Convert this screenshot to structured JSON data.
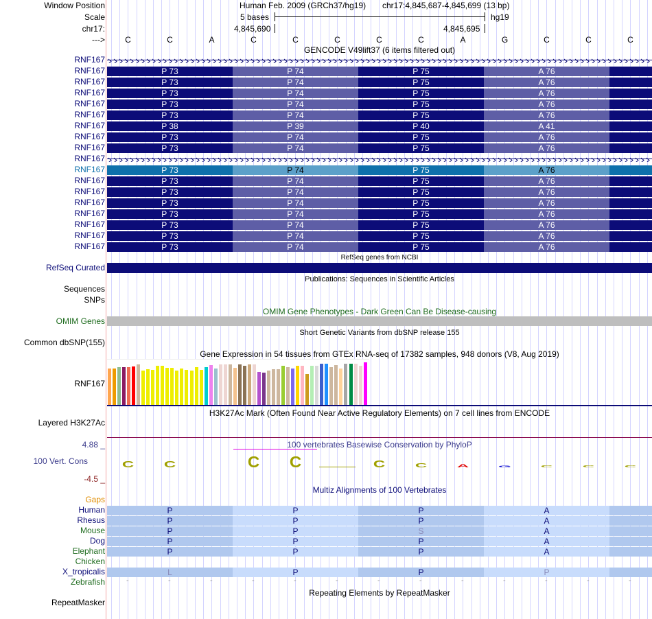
{
  "header": {
    "window_position_label": "Window Position",
    "scale_label": "Scale",
    "chrom_label": "chr17:",
    "strand_label": "--->",
    "assembly_text": "Human Feb. 2009 (GRCh37/hg19)",
    "position_text": "chr17:4,845,687-4,845,699 (13 bp)",
    "scale_text": "5 bases",
    "scale_db": "hg19",
    "coord_left": "4,845,690",
    "coord_right": "4,845,695",
    "bases": [
      "C",
      "C",
      "A",
      "C",
      "C",
      "C",
      "C",
      "C",
      "A",
      "G",
      "C",
      "C",
      "C"
    ]
  },
  "gencode": {
    "title": "GENCODE V49lift37 (6 items filtered out)",
    "gene": "RNF167",
    "rows": [
      {
        "type": "intron"
      },
      {
        "type": "exon",
        "codons": [
          "P 73",
          "P 74",
          "P 75",
          "A 76"
        ]
      },
      {
        "type": "exon",
        "codons": [
          "P 73",
          "P 74",
          "P 75",
          "A 76"
        ]
      },
      {
        "type": "exon",
        "codons": [
          "P 73",
          "P 74",
          "P 75",
          "A 76"
        ]
      },
      {
        "type": "exon",
        "codons": [
          "P 73",
          "P 74",
          "P 75",
          "A 76"
        ]
      },
      {
        "type": "exon",
        "codons": [
          "P 73",
          "P 74",
          "P 75",
          "A 76"
        ]
      },
      {
        "type": "exon",
        "codons": [
          "P 38",
          "P 39",
          "P 40",
          "A 41"
        ]
      },
      {
        "type": "exon",
        "codons": [
          "P 73",
          "P 74",
          "P 75",
          "A 76"
        ]
      },
      {
        "type": "exon",
        "codons": [
          "P 73",
          "P 74",
          "P 75",
          "A 76"
        ]
      },
      {
        "type": "intron"
      },
      {
        "type": "exon",
        "highlight": true,
        "codons": [
          "P 73",
          "P 74",
          "P 75",
          "A 76"
        ]
      },
      {
        "type": "exon",
        "codons": [
          "P 73",
          "P 74",
          "P 75",
          "A 76"
        ]
      },
      {
        "type": "exon",
        "codons": [
          "P 73",
          "P 74",
          "P 75",
          "A 76"
        ]
      },
      {
        "type": "exon",
        "codons": [
          "P 73",
          "P 74",
          "P 75",
          "A 76"
        ]
      },
      {
        "type": "exon",
        "codons": [
          "P 73",
          "P 74",
          "P 75",
          "A 76"
        ]
      },
      {
        "type": "exon",
        "codons": [
          "P 73",
          "P 74",
          "P 75",
          "A 76"
        ]
      },
      {
        "type": "exon",
        "codons": [
          "P 73",
          "P 74",
          "P 75",
          "A 76"
        ]
      },
      {
        "type": "exon",
        "codons": [
          "P 73",
          "P 74",
          "P 75",
          "A 76"
        ]
      }
    ],
    "colors": {
      "dark": "#0c0c78",
      "light": "#5e5ea6",
      "hl_dark": "#0e70ab",
      "hl_light": "#5ca0c9"
    }
  },
  "refseq": {
    "title": "RefSeq genes from NCBI",
    "label": "RefSeq Curated",
    "color": "#0c0c78"
  },
  "publications": {
    "title": "Publications: Sequences in Scientific Articles",
    "label1": "Sequences",
    "label2": "SNPs"
  },
  "omim": {
    "title": "OMIM Gene Phenotypes - Dark Green Can Be Disease-causing",
    "label": "OMIM Genes",
    "color": "#1e6b1e",
    "bar_color": "#bebebe"
  },
  "dbsnp": {
    "title": "Short Genetic Variants from dbSNP release 155",
    "label": "Common dbSNP(155)"
  },
  "gtex": {
    "title": "Gene Expression in 54 tissues from GTEx RNA-seq of 17382 samples, 948 donors (V8, Aug 2019)",
    "label": "RNF167",
    "bars": [
      {
        "c": "#ffa54f",
        "v": 0.85
      },
      {
        "c": "#ee9a00",
        "v": 0.84
      },
      {
        "c": "#8fbc8f",
        "v": 0.88
      },
      {
        "c": "#8b1c62",
        "v": 0.87
      },
      {
        "c": "#ee6a50",
        "v": 0.88
      },
      {
        "c": "#ff0000",
        "v": 0.89
      },
      {
        "c": "#cdb79e",
        "v": 0.94
      },
      {
        "c": "#eeee00",
        "v": 0.8
      },
      {
        "c": "#eeee00",
        "v": 0.83
      },
      {
        "c": "#eeee00",
        "v": 0.82
      },
      {
        "c": "#eeee00",
        "v": 0.91
      },
      {
        "c": "#eeee00",
        "v": 0.91
      },
      {
        "c": "#eeee00",
        "v": 0.86
      },
      {
        "c": "#eeee00",
        "v": 0.86
      },
      {
        "c": "#eeee00",
        "v": 0.8
      },
      {
        "c": "#eeee00",
        "v": 0.84
      },
      {
        "c": "#eeee00",
        "v": 0.82
      },
      {
        "c": "#eeee00",
        "v": 0.8
      },
      {
        "c": "#eeee00",
        "v": 0.88
      },
      {
        "c": "#eeee00",
        "v": 0.81
      },
      {
        "c": "#00cdcd",
        "v": 0.87
      },
      {
        "c": "#ee82ee",
        "v": 0.92
      },
      {
        "c": "#9ac0cd",
        "v": 0.85
      },
      {
        "c": "#eed5d2",
        "v": 0.94
      },
      {
        "c": "#eed5d2",
        "v": 0.94
      },
      {
        "c": "#cdb79e",
        "v": 0.94
      },
      {
        "c": "#f4c28d",
        "v": 0.86
      },
      {
        "c": "#8b7355",
        "v": 0.94
      },
      {
        "c": "#8b7355",
        "v": 0.9
      },
      {
        "c": "#cdaa7d",
        "v": 0.94
      },
      {
        "c": "#eed5d2",
        "v": 0.94
      },
      {
        "c": "#b452cd",
        "v": 0.77
      },
      {
        "c": "#7a378b",
        "v": 0.75
      },
      {
        "c": "#cdb79e",
        "v": 0.8
      },
      {
        "c": "#cdb79e",
        "v": 0.83
      },
      {
        "c": "#cdb79e",
        "v": 0.83
      },
      {
        "c": "#9acd32",
        "v": 0.9
      },
      {
        "c": "#cdb79e",
        "v": 0.87
      },
      {
        "c": "#7b68ee",
        "v": 0.84
      },
      {
        "c": "#ffd700",
        "v": 0.91
      },
      {
        "c": "#ffb6c1",
        "v": 0.91
      },
      {
        "c": "#cd9b1d",
        "v": 0.72
      },
      {
        "c": "#b4eeb4",
        "v": 0.91
      },
      {
        "c": "#d9d9d9",
        "v": 0.91
      },
      {
        "c": "#3a5fcd",
        "v": 0.95
      },
      {
        "c": "#1e90ff",
        "v": 0.95
      },
      {
        "c": "#cdb79e",
        "v": 0.88
      },
      {
        "c": "#cdb79e",
        "v": 0.92
      },
      {
        "c": "#ffd39b",
        "v": 0.85
      },
      {
        "c": "#a6a6a6",
        "v": 0.96
      },
      {
        "c": "#008b45",
        "v": 0.95
      },
      {
        "c": "#eed5d2",
        "v": 0.96
      },
      {
        "c": "#eed5d2",
        "v": 0.91
      },
      {
        "c": "#ff00ff",
        "v": 0.98
      }
    ]
  },
  "h3k27ac": {
    "title": "H3K27Ac Mark (Often Found Near Active Regulatory Elements) on 7 cell lines from ENCODE",
    "label": "Layered H3K27Ac"
  },
  "phylop": {
    "title": "100 vertebrates Basewise Conservation by PhyloP",
    "label": "100 Vert. Cons",
    "max_label": "4.88 _",
    "min_label": "-4.5 _",
    "bases": [
      {
        "b": "C",
        "h": 0.55,
        "c": "#a0a000"
      },
      {
        "b": "C",
        "h": 0.55,
        "c": "#a0a000"
      },
      {
        "b": "",
        "h": 0,
        "c": "#a0a000"
      },
      {
        "b": "C",
        "h": 0.95,
        "c": "#a0a000"
      },
      {
        "b": "C",
        "h": 0.95,
        "c": "#a0a000"
      },
      {
        "b": "",
        "h": 0.02,
        "c": "#a0a000"
      },
      {
        "b": "C",
        "h": 0.6,
        "c": "#a0a000"
      },
      {
        "b": "C",
        "h": 0.35,
        "c": "#a0a000"
      },
      {
        "b": "A",
        "h": 0.25,
        "c": "#e00000"
      },
      {
        "b": "G",
        "h": 0.15,
        "c": "#0000d0"
      },
      {
        "b": "C",
        "h": 0.2,
        "c": "#a0a000"
      },
      {
        "b": "C",
        "h": 0.2,
        "c": "#a0a000"
      },
      {
        "b": "C",
        "h": 0.2,
        "c": "#a0a000"
      }
    ]
  },
  "multiz": {
    "title": "Multiz Alignments of 100 Vertebrates",
    "gaps_label": "Gaps",
    "species": [
      {
        "name": "Human",
        "color": "#0c0c78",
        "aa": [
          "P",
          "P",
          "P",
          "A"
        ],
        "dim": [
          false,
          false,
          false,
          false
        ]
      },
      {
        "name": "Rhesus",
        "color": "#0c0c78",
        "aa": [
          "P",
          "P",
          "P",
          "A"
        ],
        "dim": [
          false,
          false,
          false,
          false
        ]
      },
      {
        "name": "Mouse",
        "color": "#1e6b1e",
        "aa": [
          "P",
          "P",
          "S",
          "A"
        ],
        "dim": [
          false,
          false,
          true,
          false
        ]
      },
      {
        "name": "Dog",
        "color": "#0c0c78",
        "aa": [
          "P",
          "P",
          "P",
          "A"
        ],
        "dim": [
          false,
          false,
          false,
          false
        ]
      },
      {
        "name": "Elephant",
        "color": "#1e6b1e",
        "aa": [
          "P",
          "P",
          "P",
          "A"
        ],
        "dim": [
          false,
          false,
          false,
          false
        ]
      },
      {
        "name": "Chicken",
        "color": "#1e6b1e",
        "aa": null
      },
      {
        "name": "X_tropicalis",
        "color": "#0c0c78",
        "aa": [
          "L",
          "P",
          "P",
          "P"
        ],
        "dim": [
          true,
          false,
          false,
          true
        ]
      },
      {
        "name": "Zebrafish",
        "color": "#1e6b1e",
        "aa": "dashes"
      }
    ],
    "colors": {
      "dark": "#b0c8ee",
      "light": "#c8dcfc"
    }
  },
  "repeatmasker": {
    "title": "Repeating Elements by RepeatMasker",
    "label": "RepeatMasker"
  }
}
